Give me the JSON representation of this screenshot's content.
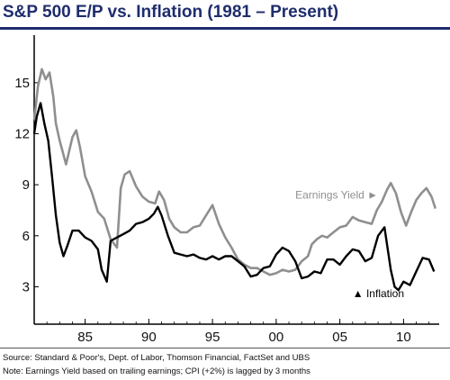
{
  "title": "S&P 500 E/P vs. Inflation (1981 – Present)",
  "colors": {
    "title": "#1f2d6e",
    "earnings_yield": "#8f8f8f",
    "inflation": "#000000",
    "axis": "#000000"
  },
  "footnotes": {
    "source": "Source: Standard & Poor's, Dept. of Labor, Thomson Financial, FactSet and UBS",
    "note": "Note: Earnings Yield based on trailing earnings; CPI (+2%) is lagged by 3 months"
  },
  "annotations": {
    "earnings_yield": {
      "text": "Earnings Yield",
      "arrow": "►",
      "x": 2001.5,
      "y": 8.2
    },
    "inflation": {
      "text": "Inflation",
      "arrow": "▲",
      "x": 2006.0,
      "y": 2.4
    }
  },
  "chart_data": {
    "type": "line",
    "title": "S&P 500 E/P vs. Inflation (1981 – Present)",
    "xlabel": "",
    "ylabel": "",
    "xlim": [
      1981.0,
      2012.8
    ],
    "ylim": [
      0.8,
      17.8
    ],
    "x_ticks": [
      1985,
      1990,
      1995,
      2000,
      2005,
      2010
    ],
    "x_tick_labels": [
      "85",
      "90",
      "95",
      "00",
      "05",
      "10"
    ],
    "y_ticks": [
      3,
      6,
      9,
      12,
      15
    ],
    "y_tick_labels": [
      "3",
      "6",
      "9",
      "12",
      "15"
    ],
    "grid": false,
    "series": [
      {
        "name": "Earnings Yield",
        "color": "#8f8f8f",
        "x": [
          1981.0,
          1981.3,
          1981.6,
          1981.9,
          1982.2,
          1982.5,
          1982.7,
          1983.0,
          1983.5,
          1984.0,
          1984.3,
          1984.6,
          1985.0,
          1985.5,
          1986.0,
          1986.5,
          1987.0,
          1987.5,
          1987.8,
          1988.1,
          1988.5,
          1989.0,
          1989.5,
          1990.0,
          1990.5,
          1990.8,
          1991.2,
          1991.6,
          1992.0,
          1992.5,
          1993.0,
          1993.5,
          1994.0,
          1994.5,
          1995.0,
          1995.5,
          1996.0,
          1996.5,
          1997.0,
          1997.5,
          1998.0,
          1998.5,
          1999.0,
          1999.5,
          2000.0,
          2000.5,
          2001.0,
          2001.5,
          2002.0,
          2002.5,
          2002.8,
          2003.2,
          2003.6,
          2004.0,
          2004.5,
          2005.0,
          2005.5,
          2006.0,
          2006.5,
          2007.0,
          2007.5,
          2007.9,
          2008.3,
          2008.7,
          2009.0,
          2009.4,
          2009.8,
          2010.2,
          2010.6,
          2011.0,
          2011.4,
          2011.8,
          2012.2,
          2012.5
        ],
        "y": [
          12.8,
          14.8,
          15.8,
          15.2,
          15.6,
          14.2,
          12.6,
          11.6,
          10.2,
          11.8,
          12.2,
          11.2,
          9.5,
          8.6,
          7.4,
          7.0,
          5.8,
          5.3,
          8.8,
          9.6,
          9.8,
          8.9,
          8.3,
          8.0,
          7.9,
          8.6,
          8.1,
          7.0,
          6.5,
          6.2,
          6.2,
          6.5,
          6.6,
          7.2,
          7.8,
          6.7,
          5.9,
          5.3,
          4.6,
          4.3,
          4.1,
          4.1,
          3.9,
          3.7,
          3.8,
          4.0,
          3.9,
          4.0,
          4.5,
          4.8,
          5.5,
          5.8,
          6.0,
          5.9,
          6.2,
          6.5,
          6.6,
          7.1,
          6.9,
          6.8,
          6.7,
          7.5,
          8.0,
          8.7,
          9.1,
          8.5,
          7.4,
          6.6,
          7.4,
          8.1,
          8.5,
          8.8,
          8.3,
          7.6
        ]
      },
      {
        "name": "Inflation",
        "color": "#000000",
        "x": [
          1981.0,
          1981.2,
          1981.5,
          1981.8,
          1982.1,
          1982.4,
          1982.7,
          1983.0,
          1983.3,
          1983.6,
          1984.0,
          1984.5,
          1985.0,
          1985.5,
          1986.0,
          1986.3,
          1986.7,
          1987.0,
          1987.5,
          1988.0,
          1988.5,
          1989.0,
          1989.5,
          1990.0,
          1990.4,
          1990.7,
          1991.0,
          1991.5,
          1992.0,
          1992.5,
          1993.0,
          1993.5,
          1994.0,
          1994.5,
          1995.0,
          1995.5,
          1996.0,
          1996.5,
          1997.0,
          1997.5,
          1998.0,
          1998.5,
          1999.0,
          1999.5,
          2000.0,
          2000.5,
          2001.0,
          2001.5,
          2002.0,
          2002.5,
          2003.0,
          2003.5,
          2004.0,
          2004.5,
          2005.0,
          2005.5,
          2006.0,
          2006.5,
          2007.0,
          2007.5,
          2008.0,
          2008.5,
          2009.0,
          2009.3,
          2009.6,
          2010.0,
          2010.5,
          2011.0,
          2011.5,
          2012.0,
          2012.4
        ],
        "y": [
          12.0,
          13.0,
          13.8,
          12.6,
          11.6,
          9.5,
          7.2,
          5.6,
          4.8,
          5.4,
          6.3,
          6.3,
          5.9,
          5.7,
          5.2,
          4.0,
          3.3,
          5.7,
          5.9,
          6.1,
          6.3,
          6.7,
          6.8,
          7.0,
          7.3,
          7.7,
          7.2,
          6.0,
          5.0,
          4.9,
          4.8,
          4.9,
          4.7,
          4.6,
          4.8,
          4.6,
          4.8,
          4.8,
          4.5,
          4.2,
          3.6,
          3.7,
          4.1,
          4.2,
          4.9,
          5.3,
          5.1,
          4.5,
          3.5,
          3.6,
          3.9,
          3.8,
          4.6,
          4.6,
          4.3,
          4.8,
          5.2,
          5.1,
          4.5,
          4.7,
          6.0,
          6.5,
          4.0,
          3.0,
          2.8,
          3.3,
          3.1,
          3.9,
          4.7,
          4.6,
          3.9
        ]
      }
    ]
  }
}
